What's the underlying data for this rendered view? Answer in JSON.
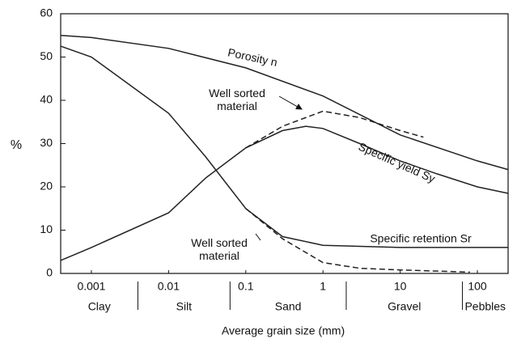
{
  "chart_data": {
    "type": "line",
    "x_label": "Average grain size (mm)",
    "y_label": "%",
    "xscale": "log",
    "xlim": [
      0.0004,
      250
    ],
    "ylim": [
      0,
      60
    ],
    "xticks": [
      0.001,
      0.01,
      0.1,
      1,
      10,
      100
    ],
    "yticks": [
      0,
      10,
      20,
      30,
      40,
      50,
      60
    ],
    "size_classes": [
      "Clay",
      "Silt",
      "Sand",
      "Gravel",
      "Pebbles"
    ],
    "class_bounds": [
      0.004,
      0.0625,
      2,
      64
    ],
    "series": [
      {
        "name": "Porosity n",
        "color": "#222222",
        "dashed": false,
        "x": [
          0.0004,
          0.001,
          0.01,
          0.1,
          1,
          10,
          100,
          250
        ],
        "values": [
          55,
          54.5,
          52,
          47.5,
          41,
          32,
          26,
          24
        ]
      },
      {
        "name": "Specific yield Sy",
        "color": "#222222",
        "dashed": false,
        "x": [
          0.0004,
          0.001,
          0.01,
          0.03,
          0.1,
          0.3,
          0.6,
          1,
          3,
          10,
          30,
          100,
          250
        ],
        "values": [
          3,
          6,
          14,
          22,
          29,
          33,
          34,
          33.5,
          30,
          26,
          23,
          20,
          18.5
        ]
      },
      {
        "name": "Specific retention Sr",
        "color": "#222222",
        "dashed": false,
        "x": [
          0.0004,
          0.001,
          0.01,
          0.03,
          0.1,
          0.3,
          1,
          10,
          100,
          250
        ],
        "values": [
          52.5,
          50,
          37,
          27,
          15,
          8.5,
          6.5,
          6,
          6,
          6
        ]
      },
      {
        "name": "Well sorted material",
        "color": "#222222",
        "dashed": true,
        "x": [
          0.1,
          0.3,
          1,
          3,
          10,
          20
        ],
        "values": [
          29,
          34,
          37.5,
          36,
          33,
          31.5
        ]
      },
      {
        "name": "Well sorted material",
        "color": "#222222",
        "dashed": true,
        "x": [
          0.1,
          0.3,
          1,
          3,
          10,
          80
        ],
        "values": [
          15,
          8,
          2.5,
          1.2,
          0.8,
          0.3
        ]
      }
    ]
  }
}
